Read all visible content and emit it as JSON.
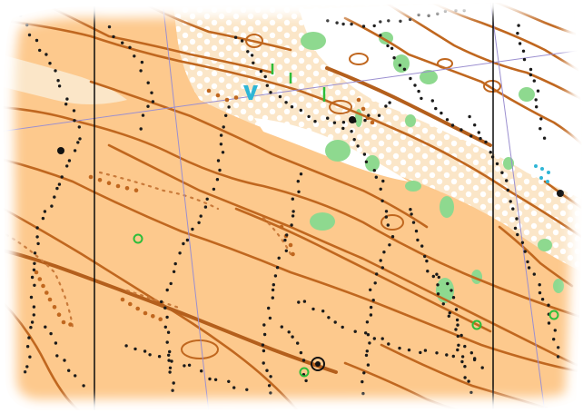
{
  "map": {
    "kind": "orienteering-map-excerpt",
    "symbol_colors": {
      "open_land": "#fdc98d",
      "rough_open_land": "#fbe2c1",
      "forest": "#ffffff",
      "contour": "#c0671f",
      "index_contour": "#b45f1c",
      "form_line": "#c97a3a",
      "vegetation_green": "#8ed98f",
      "boulder": "#1a1a1a",
      "north_line": "#0a0a0a",
      "magnetic_grid": "#9b8fd0",
      "water_feature": "#2fb6d6",
      "small_green_feature": "#2dbd3a",
      "control_circle": "#111111"
    },
    "features": [
      {
        "id": "vegetation",
        "symbol": "green-vegetation-patch"
      },
      {
        "id": "boulders",
        "symbol": "black-dot"
      },
      {
        "id": "knolls",
        "symbol": "brown-dot"
      },
      {
        "id": "water",
        "symbol": "blue-marsh-mark"
      },
      {
        "id": "special",
        "symbol": "green-circle"
      },
      {
        "id": "control",
        "symbol": "black-double-circle"
      }
    ]
  }
}
